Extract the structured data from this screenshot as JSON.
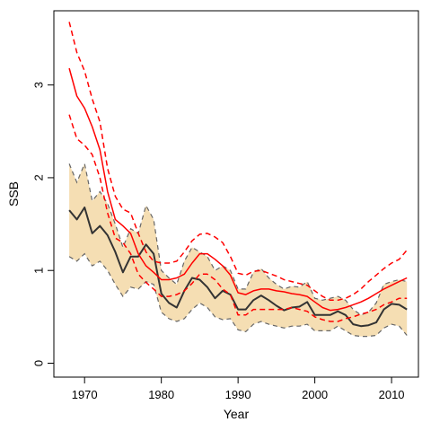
{
  "chart_data": {
    "type": "line",
    "title": "",
    "xlabel": "Year",
    "ylabel": "SSB",
    "xlim": [
      1966,
      2013.5
    ],
    "ylim": [
      -0.15,
      3.8
    ],
    "xticks": [
      1970,
      1980,
      1990,
      2000,
      2010
    ],
    "yticks": [
      0,
      1,
      2,
      3
    ],
    "grid": false,
    "legend": "none",
    "x": [
      1968,
      1969,
      1970,
      1971,
      1972,
      1973,
      1974,
      1975,
      1976,
      1977,
      1978,
      1979,
      1980,
      1981,
      1982,
      1983,
      1984,
      1985,
      1986,
      1987,
      1988,
      1989,
      1990,
      1991,
      1992,
      1993,
      1994,
      1995,
      1996,
      1997,
      1998,
      1999,
      2000,
      2001,
      2002,
      2003,
      2004,
      2005,
      2006,
      2007,
      2008,
      2009,
      2010,
      2011,
      2012
    ],
    "series": [
      {
        "role": "band",
        "color": "#f5deb3",
        "edge_color": "#666666",
        "lower": [
          1.15,
          1.1,
          1.18,
          1.05,
          1.1,
          1.0,
          0.85,
          0.72,
          0.82,
          0.8,
          0.88,
          0.85,
          0.55,
          0.48,
          0.45,
          0.48,
          0.58,
          0.65,
          0.6,
          0.5,
          0.47,
          0.48,
          0.36,
          0.34,
          0.42,
          0.45,
          0.42,
          0.4,
          0.38,
          0.4,
          0.4,
          0.42,
          0.35,
          0.35,
          0.35,
          0.4,
          0.35,
          0.3,
          0.29,
          0.29,
          0.3,
          0.38,
          0.42,
          0.4,
          0.3
        ],
        "upper": [
          2.15,
          1.95,
          2.15,
          1.75,
          1.85,
          1.72,
          1.5,
          1.25,
          1.45,
          1.4,
          1.7,
          1.55,
          1.0,
          0.92,
          0.85,
          1.1,
          1.25,
          1.2,
          1.15,
          1.0,
          1.05,
          1.0,
          0.8,
          0.8,
          0.98,
          1.02,
          0.92,
          0.85,
          0.8,
          0.83,
          0.82,
          0.88,
          0.7,
          0.68,
          0.7,
          0.72,
          0.68,
          0.58,
          0.52,
          0.55,
          0.65,
          0.85,
          0.88,
          0.9,
          0.88
        ]
      },
      {
        "role": "median",
        "color": "#333333",
        "values": [
          1.65,
          1.55,
          1.68,
          1.4,
          1.48,
          1.38,
          1.2,
          0.98,
          1.15,
          1.15,
          1.28,
          1.18,
          0.75,
          0.65,
          0.6,
          0.78,
          0.92,
          0.9,
          0.82,
          0.7,
          0.78,
          0.74,
          0.58,
          0.58,
          0.68,
          0.73,
          0.68,
          0.62,
          0.57,
          0.6,
          0.61,
          0.66,
          0.52,
          0.52,
          0.52,
          0.56,
          0.52,
          0.42,
          0.4,
          0.41,
          0.44,
          0.58,
          0.64,
          0.63,
          0.58
        ]
      },
      {
        "role": "estimate",
        "color": "#ff0000",
        "values": [
          3.18,
          2.88,
          2.75,
          2.55,
          2.3,
          1.85,
          1.55,
          1.48,
          1.4,
          1.18,
          1.05,
          0.98,
          0.9,
          0.9,
          0.92,
          0.96,
          1.08,
          1.18,
          1.18,
          1.12,
          1.05,
          0.95,
          0.76,
          0.74,
          0.78,
          0.8,
          0.8,
          0.78,
          0.77,
          0.75,
          0.74,
          0.72,
          0.66,
          0.6,
          0.57,
          0.58,
          0.6,
          0.63,
          0.66,
          0.7,
          0.75,
          0.8,
          0.84,
          0.88,
          0.92
        ]
      },
      {
        "role": "estimate-upper",
        "color": "#ff0000",
        "dashed": true,
        "values": [
          3.68,
          3.35,
          3.15,
          2.85,
          2.6,
          2.1,
          1.8,
          1.66,
          1.62,
          1.4,
          1.2,
          1.1,
          1.08,
          1.08,
          1.1,
          1.2,
          1.32,
          1.39,
          1.4,
          1.36,
          1.3,
          1.15,
          0.97,
          0.95,
          0.99,
          1.0,
          0.97,
          0.94,
          0.9,
          0.88,
          0.86,
          0.84,
          0.78,
          0.72,
          0.68,
          0.68,
          0.7,
          0.74,
          0.8,
          0.88,
          0.95,
          1.02,
          1.08,
          1.12,
          1.22
        ]
      },
      {
        "role": "estimate-lower",
        "color": "#ff0000",
        "dashed": true,
        "values": [
          2.68,
          2.42,
          2.35,
          2.25,
          2.0,
          1.62,
          1.35,
          1.3,
          1.18,
          0.96,
          0.87,
          0.8,
          0.72,
          0.72,
          0.74,
          0.78,
          0.86,
          0.96,
          0.96,
          0.9,
          0.8,
          0.74,
          0.52,
          0.52,
          0.58,
          0.58,
          0.58,
          0.58,
          0.58,
          0.6,
          0.58,
          0.56,
          0.5,
          0.47,
          0.45,
          0.45,
          0.48,
          0.5,
          0.53,
          0.55,
          0.58,
          0.63,
          0.66,
          0.7,
          0.7
        ]
      }
    ]
  }
}
